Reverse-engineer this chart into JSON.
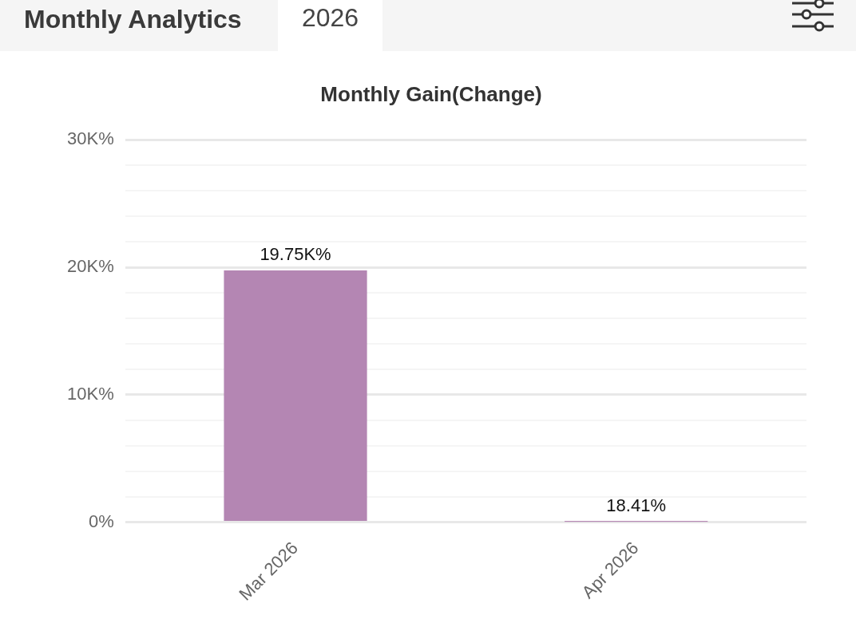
{
  "chart_data": {
    "type": "bar",
    "title": "Monthly Gain(Change)",
    "annotations": [
      "Monthly Analytics",
      "2026"
    ],
    "categories": [
      "Mar 2026",
      "Apr 2026"
    ],
    "values": [
      19750,
      18.41
    ],
    "color": "#b486b3",
    "value_labels": [
      "19.75K%",
      "18.41%"
    ],
    "ylim": [
      0,
      30000
    ],
    "yticks": [
      {
        "value": 0,
        "label": "0%"
      },
      {
        "value": 2000,
        "label": null
      },
      {
        "value": 4000,
        "label": null
      },
      {
        "value": 6000,
        "label": null
      },
      {
        "value": 8000,
        "label": null
      },
      {
        "value": 10000,
        "label": "10K%"
      },
      {
        "value": 12000,
        "label": null
      },
      {
        "value": 14000,
        "label": null
      },
      {
        "value": 16000,
        "label": null
      },
      {
        "value": 18000,
        "label": null
      },
      {
        "value": 20000,
        "label": "20K%"
      },
      {
        "value": 22000,
        "label": null
      },
      {
        "value": 24000,
        "label": null
      },
      {
        "value": 26000,
        "label": null
      },
      {
        "value": 28000,
        "label": null
      },
      {
        "value": 30000,
        "label": "30K%"
      }
    ],
    "grid": "y",
    "legend": false
  }
}
